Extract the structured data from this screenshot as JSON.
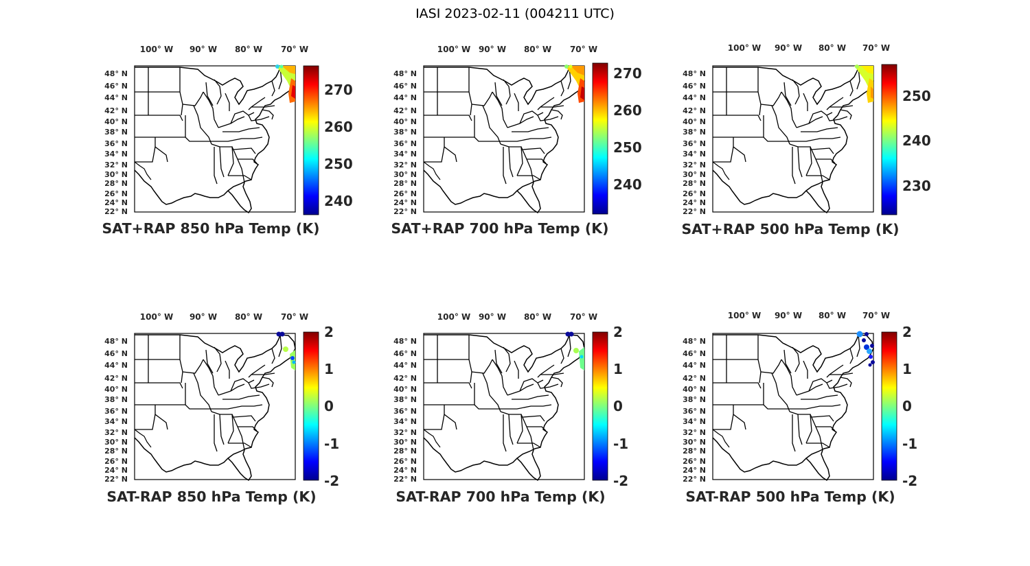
{
  "figure": {
    "title": "IASI 2023-02-11 (004211 UTC)"
  },
  "map": {
    "lon_ticks": [
      "100° W",
      "90° W",
      "80° W",
      "70° W"
    ],
    "lat_ticks": [
      "48° N",
      "46° N",
      "44° N",
      "42° N",
      "40° N",
      "38° N",
      "36° N",
      "34° N",
      "32° N",
      "30° N",
      "28° N",
      "26° N",
      "24° N",
      "22° N"
    ]
  },
  "colormap": "jet",
  "panels": [
    {
      "title": "SAT+RAP 850 hPa Temp (K)",
      "colorbar": {
        "min": 237,
        "max": 276,
        "ticks": [
          "240",
          "250",
          "260",
          "270"
        ]
      }
    },
    {
      "title": "SAT+RAP 700 hPa Temp (K)",
      "colorbar": {
        "min": 232,
        "max": 273,
        "ticks": [
          "240",
          "250",
          "260",
          "270"
        ]
      }
    },
    {
      "title": "SAT+RAP 500 hPa Temp (K)",
      "colorbar": {
        "min": 224,
        "max": 257,
        "ticks": [
          "230",
          "240",
          "250"
        ]
      }
    },
    {
      "title": "SAT-RAP 850 hPa Temp (K)",
      "colorbar": {
        "min": -2,
        "max": 2,
        "ticks": [
          "-2",
          "-1",
          "0",
          "1",
          "2"
        ]
      }
    },
    {
      "title": "SAT-RAP 700 hPa Temp (K)",
      "colorbar": {
        "min": -2,
        "max": 2,
        "ticks": [
          "-2",
          "-1",
          "0",
          "1",
          "2"
        ]
      }
    },
    {
      "title": "SAT-RAP 500 hPa Temp (K)",
      "colorbar": {
        "min": -2,
        "max": 2,
        "ticks": [
          "-2",
          "-1",
          "0",
          "1",
          "2"
        ]
      }
    }
  ]
}
